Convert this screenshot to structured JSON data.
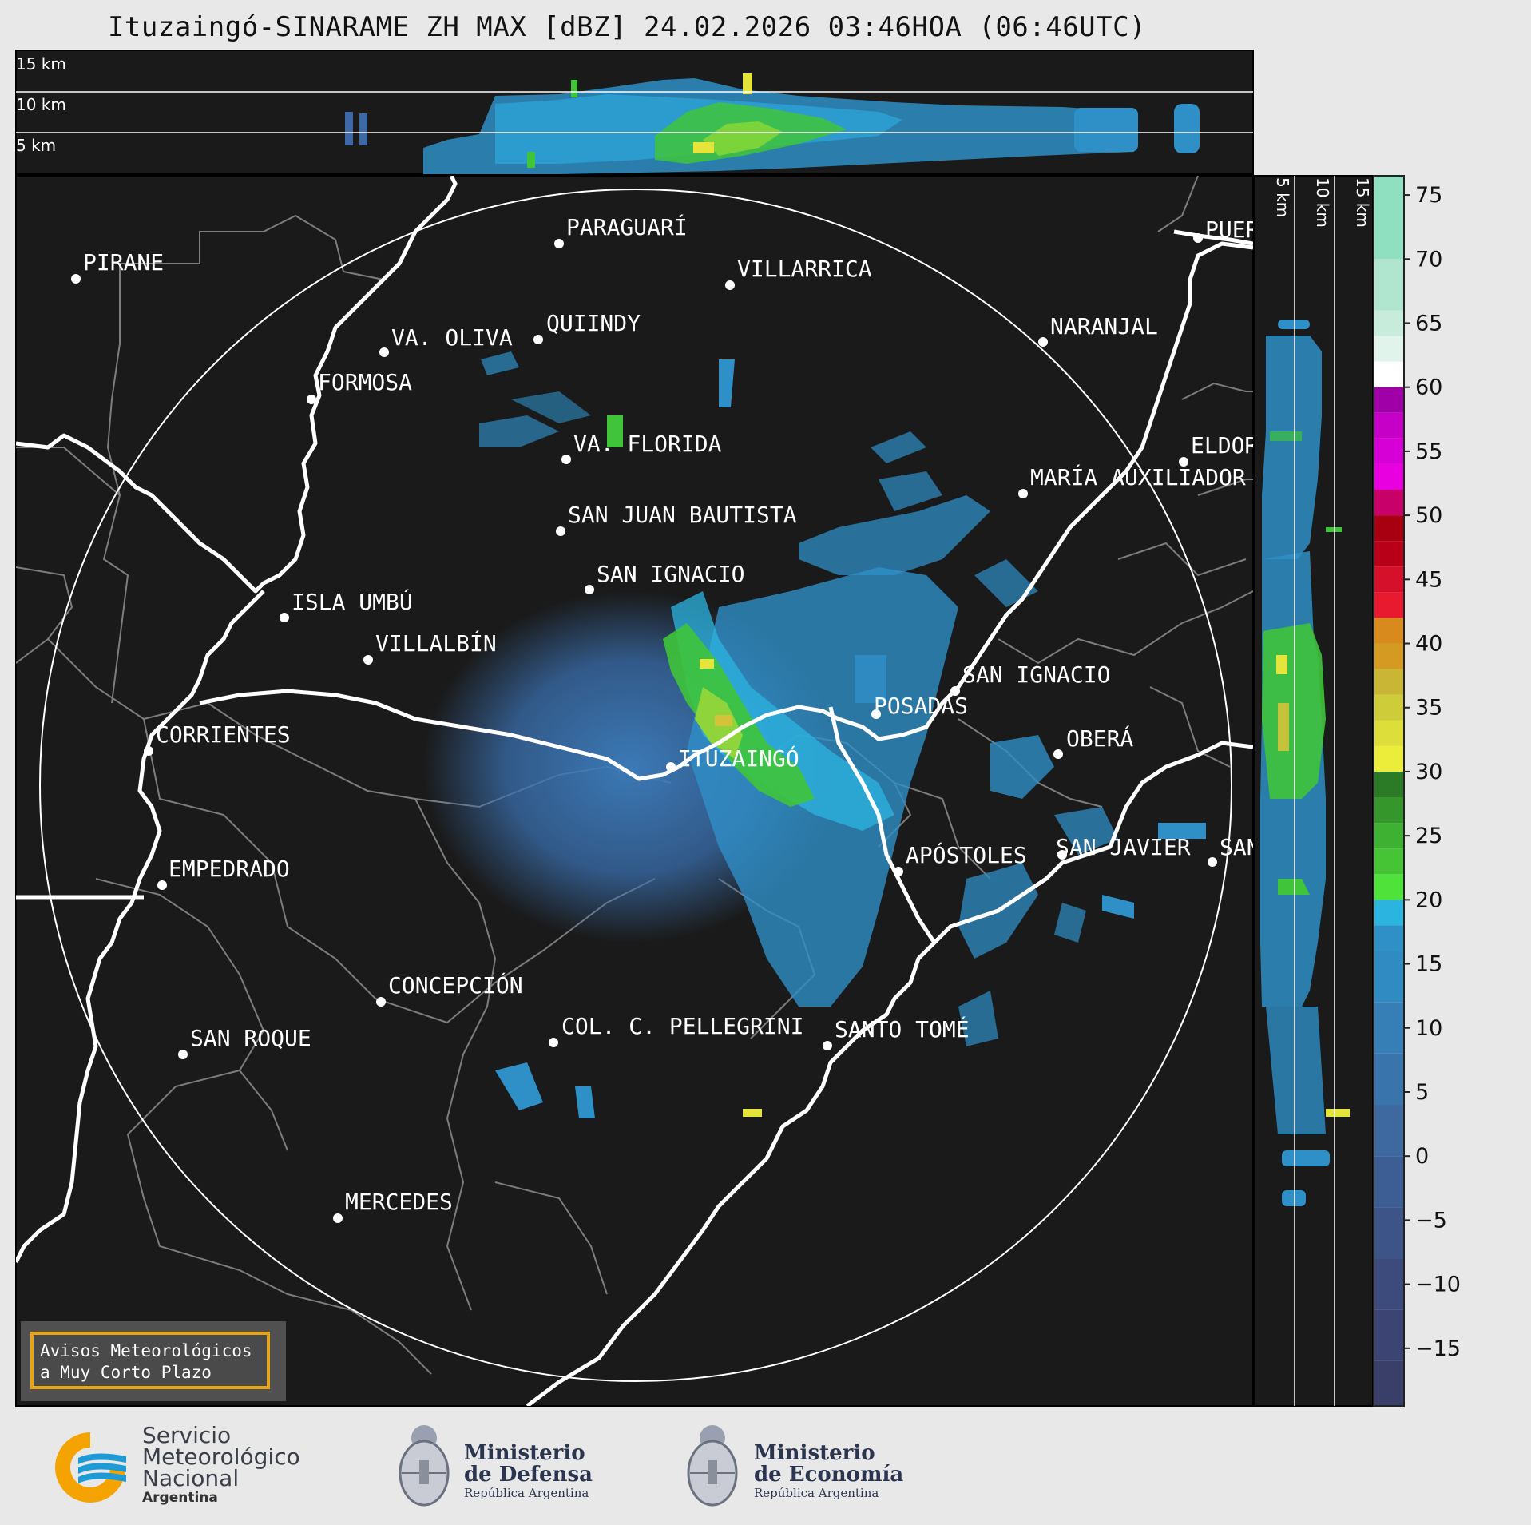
{
  "title": "Ituzaingó-SINARAME ZH MAX [dBZ] 24.02.2026 03:46HOA (06:46UTC)",
  "top_panel": {
    "altitude_labels": [
      "15 km",
      "10 km",
      "5 km"
    ]
  },
  "side_panel": {
    "altitude_labels": [
      "5 km",
      "10 km",
      "15 km"
    ]
  },
  "cities": [
    {
      "name": "PIRANE"
    },
    {
      "name": "PARAGUARÍ"
    },
    {
      "name": "VILLARRICA"
    },
    {
      "name": "PUER"
    },
    {
      "name": "NARANJAL"
    },
    {
      "name": "QUIINDY"
    },
    {
      "name": "VA. OLIVA"
    },
    {
      "name": "FORMOSA"
    },
    {
      "name": "VA. FLORIDA"
    },
    {
      "name": "ELDOR"
    },
    {
      "name": "MARÍA AUXILIADOR"
    },
    {
      "name": "SAN JUAN BAUTISTA"
    },
    {
      "name": "SAN IGNACIO"
    },
    {
      "name": "ISLA UMBÚ"
    },
    {
      "name": "VILLALBÍN"
    },
    {
      "name": "SAN IGNACIO"
    },
    {
      "name": "POSADAS"
    },
    {
      "name": "CORRIENTES"
    },
    {
      "name": "ITUZAINGÓ"
    },
    {
      "name": "OBERÁ"
    },
    {
      "name": "EMPEDRADO"
    },
    {
      "name": "APÓSTOLES"
    },
    {
      "name": "SAN JAVIER"
    },
    {
      "name": "SAN"
    },
    {
      "name": "CONCEPCIÓN"
    },
    {
      "name": "COL. C. PELLEGRINI"
    },
    {
      "name": "SANTO TOMÉ"
    },
    {
      "name": "SAN ROQUE"
    },
    {
      "name": "MERCEDES"
    }
  ],
  "colorbar": {
    "ticks": [
      "75",
      "70",
      "65",
      "60",
      "55",
      "50",
      "45",
      "40",
      "35",
      "30",
      "25",
      "20",
      "15",
      "10",
      "5",
      "0",
      "−5",
      "−10",
      "−15"
    ],
    "min": -19.5,
    "max": 76.5,
    "colors": {
      "lt0": "#3b3f6e",
      "lt10": "#3d6aa6",
      "lt17": "#2f8fc7",
      "lt20": "#2cb4e0",
      "lt30": "#3fc43a",
      "lt36": "#e4e43a",
      "lt42": "#d98a1c",
      "lt49": "#a80010",
      "lt58": "#c600c6",
      "lt62": "#ffffff",
      "lt76": "#8fe0c0"
    }
  },
  "warning_box": {
    "line1": "Avisos Meteorológicos",
    "line2": "a Muy Corto Plazo"
  },
  "logos": {
    "smn": {
      "line1": "Servicio",
      "line2": "Meteorológico",
      "line3": "Nacional",
      "line4": "Argentina"
    },
    "defensa": {
      "line1": "Ministerio",
      "line2": "de Defensa",
      "line3": "República Argentina"
    },
    "economia": {
      "line1": "Ministerio",
      "line2": "de Economía",
      "line3": "República Argentina"
    }
  },
  "colors": {
    "map_background": "#1a1a1a",
    "page_background": "#e8e8e8",
    "warning_border": "#e6a417",
    "smn_orange": "#f4a300",
    "smn_blue": "#1e9ad6"
  }
}
